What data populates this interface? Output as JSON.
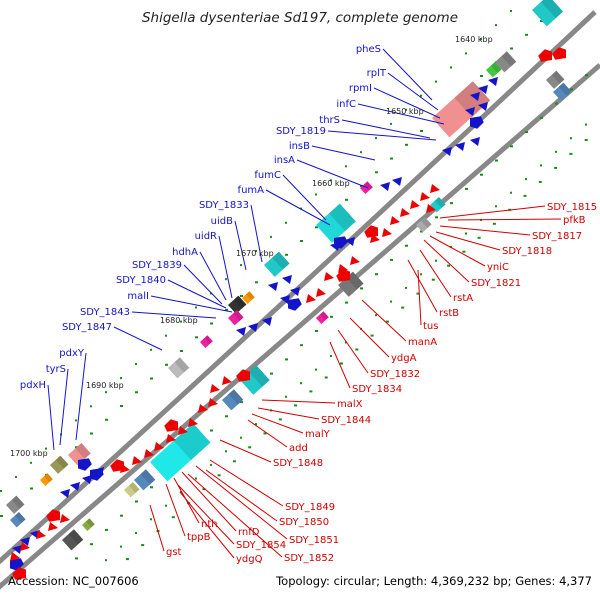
{
  "title": "Shigella dysenteriae Sd197, complete genome",
  "footer": {
    "accession": "Accession: NC_007606",
    "summary": "Topology: circular; Length: 4,369,232 bp; Genes: 4,377"
  },
  "colors": {
    "backbone": "#888888",
    "forward_gene": "#1414c8",
    "reverse_gene": "#ee0000",
    "tick": "#1a8a1a",
    "label_blue": "#1414c8",
    "label_red": "#d00000"
  },
  "ruler_labels": [
    "1640 kbp",
    "1650 kbp",
    "1660 kbp",
    "1670 kbp",
    "1680 kbp",
    "1690 kbp",
    "1700 kbp"
  ],
  "forward_genes": [
    "pheS",
    "rplT",
    "rpmI",
    "infC",
    "thrS",
    "SDY_1819",
    "insB",
    "insA",
    "fumC",
    "fumA",
    "SDY_1833",
    "uidB",
    "uidR",
    "hdhA",
    "SDY_1839",
    "SDY_1840",
    "malI",
    "SDY_1843",
    "SDY_1847",
    "pdxY",
    "tyrS",
    "pdxH"
  ],
  "reverse_genes": [
    "SDY_1815",
    "pfkB",
    "SDY_1817",
    "SDY_1818",
    "yniC",
    "SDY_1821",
    "rstA",
    "rstB",
    "tus",
    "manA",
    "ydgA",
    "SDY_1832",
    "SDY_1834",
    "malX",
    "SDY_1844",
    "malY",
    "add",
    "SDY_1848",
    "SDY_1849",
    "SDY_1850",
    "SDY_1851",
    "SDY_1852",
    "rnfD",
    "nth",
    "SDY_1854",
    "tppB",
    "ydgQ",
    "gst"
  ]
}
